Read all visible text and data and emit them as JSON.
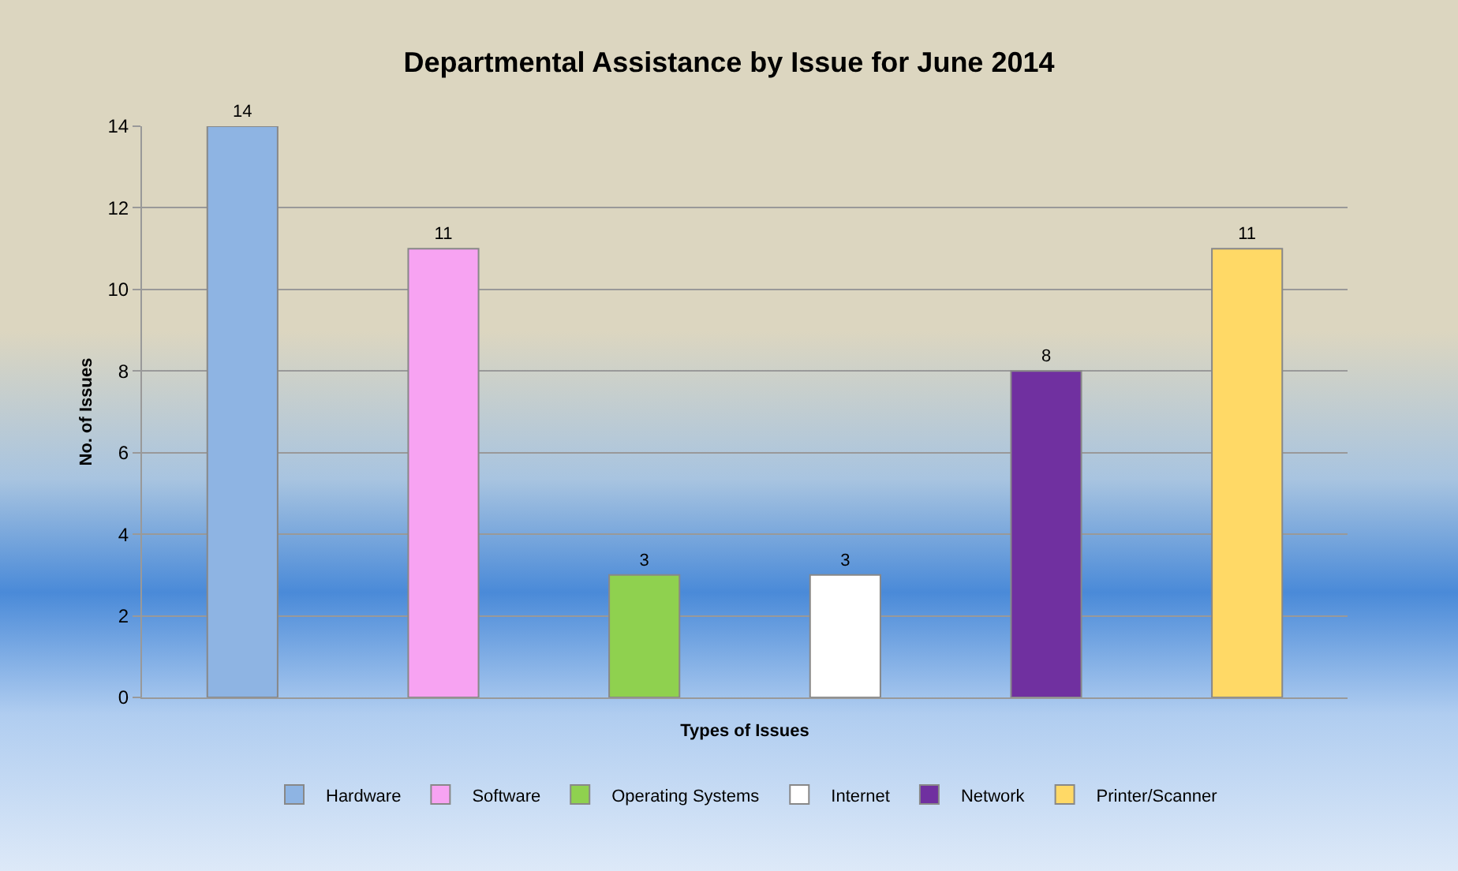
{
  "chart_data": {
    "type": "bar",
    "title": "Departmental Assistance by Issue for June 2014",
    "xlabel": "Types of Issues",
    "ylabel": "No. of Issues",
    "categories": [
      null,
      null,
      null,
      null,
      null,
      null
    ],
    "series": [
      {
        "name": "Hardware",
        "color": "#8eb4e3",
        "values": [
          14,
          null,
          null,
          null,
          null,
          null
        ]
      },
      {
        "name": "Software",
        "color": "#f7a3f2",
        "values": [
          null,
          11,
          null,
          null,
          null,
          null
        ]
      },
      {
        "name": "Operating Systems",
        "color": "#8fd14f",
        "values": [
          null,
          null,
          3,
          null,
          null,
          null
        ]
      },
      {
        "name": "Internet",
        "color": "#ffffff",
        "values": [
          null,
          null,
          null,
          3,
          null,
          null
        ]
      },
      {
        "name": "Network",
        "color": "#7030a0",
        "values": [
          null,
          null,
          null,
          null,
          8,
          null
        ]
      },
      {
        "name": "Printer/Scanner",
        "color": "#ffd966",
        "values": [
          null,
          null,
          null,
          null,
          null,
          11
        ]
      }
    ],
    "ylim": [
      0,
      14
    ],
    "yticks": [
      0,
      2,
      4,
      6,
      8,
      10,
      12,
      14
    ],
    "grid": "y",
    "legend": "bottom",
    "data_labels": true
  }
}
